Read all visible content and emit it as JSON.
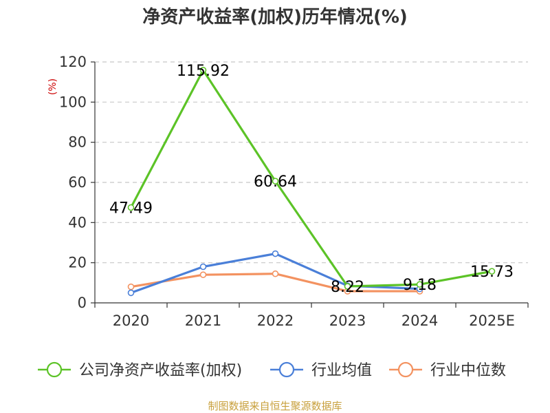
{
  "chart_data": {
    "type": "line",
    "title": "净资产收益率(加权)历年情况(%)",
    "ylabel": "(%)",
    "xlabel": "",
    "categories": [
      "2020",
      "2021",
      "2022",
      "2023",
      "2024",
      "2025E"
    ],
    "ylim": [
      0,
      120
    ],
    "yticks": [
      0,
      20,
      40,
      60,
      80,
      100,
      120
    ],
    "grid": true,
    "legend_position": "bottom",
    "series": [
      {
        "name": "公司净资产收益率(加权)",
        "color": "#5cc327",
        "values": [
          47.49,
          115.92,
          60.64,
          8.22,
          9.18,
          15.73
        ],
        "labels": [
          "47.49",
          "115.92",
          "60.64",
          "8.22",
          "9.18",
          "15.73"
        ]
      },
      {
        "name": "行业均值",
        "color": "#4a7fd8",
        "values": [
          5.0,
          18.0,
          24.5,
          8.5,
          7.0,
          null
        ]
      },
      {
        "name": "行业中位数",
        "color": "#f39260",
        "values": [
          8.0,
          14.0,
          14.5,
          5.8,
          5.8,
          null
        ]
      }
    ]
  },
  "source": "制图数据来自恒生聚源数据库"
}
